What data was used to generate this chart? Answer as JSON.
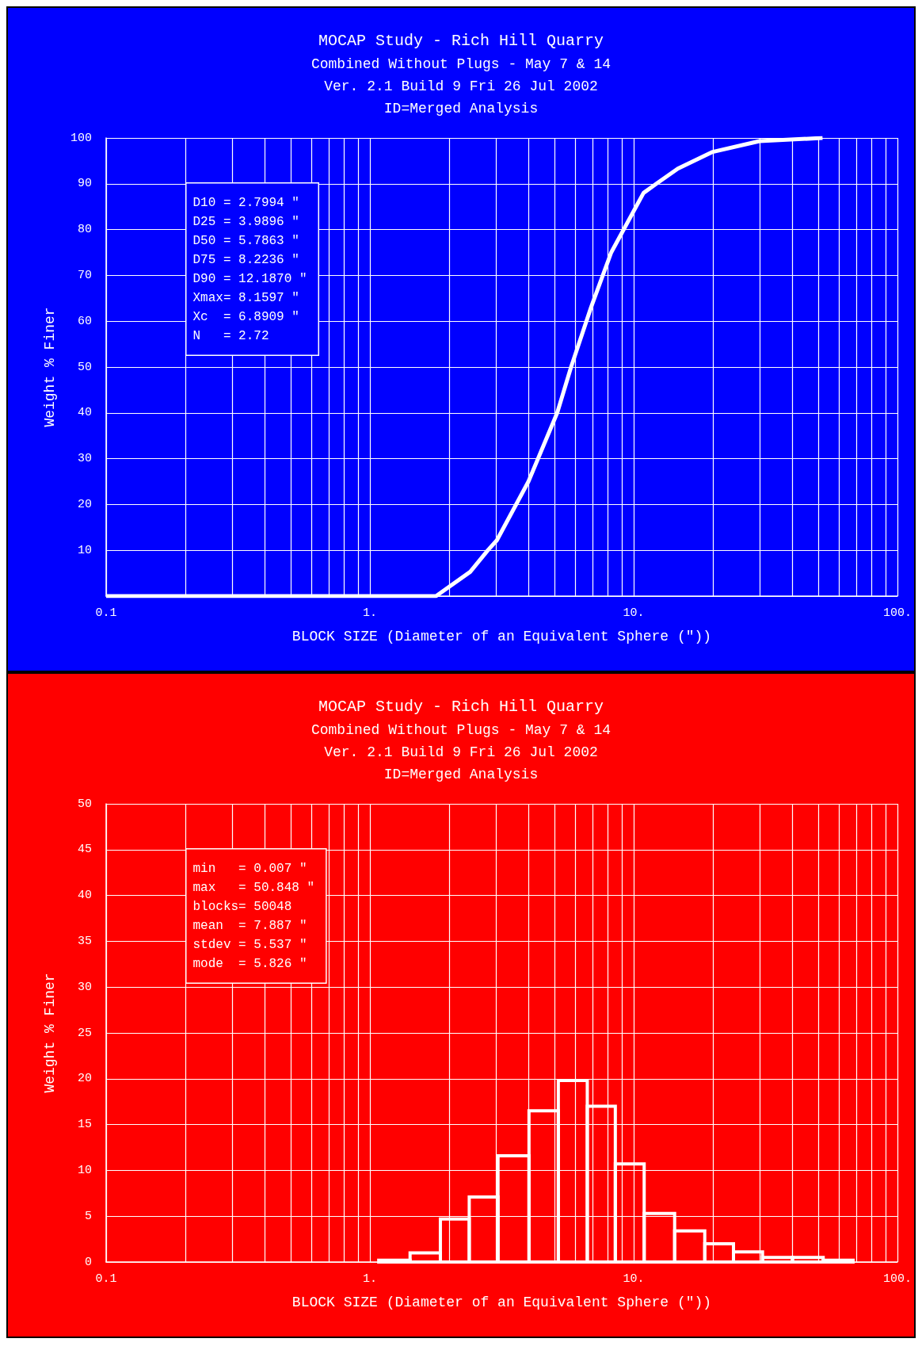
{
  "chart_data": [
    {
      "type": "line",
      "title": "MOCAP Study - Rich Hill Quarry",
      "subtitle": "Combined Without Plugs - May 7 & 14\nVer. 2.1 Build 9 Fri 26 Jul 2002\nID=Merged Analysis",
      "xlabel": "BLOCK SIZE (Diameter of an Equivalent Sphere (\"))",
      "ylabel": "Weight % Finer",
      "x": [
        0.1,
        1.44,
        1.78,
        2.4,
        2.8,
        3.03,
        3.99,
        5.13,
        5.79,
        6.89,
        8.22,
        10.9,
        12.19,
        14.7,
        19.8,
        30,
        52
      ],
      "series": [
        {
          "color": "#ffffff",
          "values": [
            0,
            0,
            0,
            5.3,
            10,
            12.2,
            25,
            40,
            50,
            63,
            75,
            88,
            90,
            93.3,
            96.9,
            99.3,
            100
          ]
        }
      ],
      "xlim": [
        0.1,
        100
      ],
      "xticks": [
        0.1,
        {
          "value": 0.2,
          "label": null
        },
        {
          "value": 0.3,
          "label": null
        },
        {
          "value": 0.4,
          "label": null
        },
        {
          "value": 0.5,
          "label": null
        },
        {
          "value": 0.6,
          "label": null
        },
        {
          "value": 0.7,
          "label": null
        },
        {
          "value": 0.8,
          "label": null
        },
        {
          "value": 0.9,
          "label": null
        },
        {
          "value": 1,
          "label": "1."
        },
        {
          "value": 2,
          "label": null
        },
        {
          "value": 3,
          "label": null
        },
        {
          "value": 4,
          "label": null
        },
        {
          "value": 5,
          "label": null
        },
        {
          "value": 6,
          "label": null
        },
        {
          "value": 7,
          "label": null
        },
        {
          "value": 8,
          "label": null
        },
        {
          "value": 9,
          "label": null
        },
        {
          "value": 10,
          "label": "10."
        },
        {
          "value": 20,
          "label": null
        },
        {
          "value": 30,
          "label": null
        },
        {
          "value": 40,
          "label": null
        },
        {
          "value": 50,
          "label": null
        },
        {
          "value": 60,
          "label": null
        },
        {
          "value": 70,
          "label": null
        },
        {
          "value": 80,
          "label": null
        },
        {
          "value": 90,
          "label": null
        },
        {
          "value": 100,
          "label": "100."
        }
      ],
      "ylim": [
        0,
        100
      ],
      "yticks": [
        {
          "value": 0,
          "label": null
        },
        10,
        20,
        30,
        40,
        50,
        60,
        70,
        80,
        90,
        100
      ],
      "log": "x",
      "grid": true,
      "marker": "none",
      "line_style": "solid",
      "annotations": [
        "D10 = 2.7994 \"",
        "D25 = 3.9896 \"",
        "D50 = 5.7863 \"",
        "D75 = 8.2236 \"",
        "D90 = 12.1870 \"",
        "Xmax= 8.1597 \"",
        "Xc  = 6.8909 \"",
        "N   = 2.72"
      ]
    },
    {
      "type": "histogram",
      "title": "MOCAP Study - Rich Hill Quarry",
      "subtitle": "Combined Without Plugs - May 7 & 14\nVer. 2.1 Build 9 Fri 26 Jul 2002\nID=Merged Analysis",
      "xlabel": "BLOCK SIZE (Diameter of an Equivalent Sphere (\"))",
      "ylabel": "Weight % Finer",
      "bins": [
        1.08,
        1.42,
        1.85,
        2.38,
        3.06,
        4.01,
        5.18,
        6.67,
        8.52,
        10.96,
        14.3,
        18.6,
        23.9,
        30.8,
        40,
        52.3,
        67.9
      ],
      "series": [
        {
          "color": "#ffffff",
          "values": [
            0.2,
            1.0,
            4.7,
            7.1,
            11.6,
            16.5,
            19.8,
            17.0,
            10.7,
            5.3,
            3.4,
            2.0,
            1.1,
            0.5,
            0.5,
            0.2
          ]
        }
      ],
      "xlim": [
        0.1,
        100
      ],
      "xticks": [
        0.1,
        {
          "value": 0.2,
          "label": null
        },
        {
          "value": 0.3,
          "label": null
        },
        {
          "value": 0.4,
          "label": null
        },
        {
          "value": 0.5,
          "label": null
        },
        {
          "value": 0.6,
          "label": null
        },
        {
          "value": 0.7,
          "label": null
        },
        {
          "value": 0.8,
          "label": null
        },
        {
          "value": 0.9,
          "label": null
        },
        {
          "value": 1,
          "label": "1."
        },
        {
          "value": 2,
          "label": null
        },
        {
          "value": 3,
          "label": null
        },
        {
          "value": 4,
          "label": null
        },
        {
          "value": 5,
          "label": null
        },
        {
          "value": 6,
          "label": null
        },
        {
          "value": 7,
          "label": null
        },
        {
          "value": 8,
          "label": null
        },
        {
          "value": 9,
          "label": null
        },
        {
          "value": 10,
          "label": "10."
        },
        {
          "value": 20,
          "label": null
        },
        {
          "value": 30,
          "label": null
        },
        {
          "value": 40,
          "label": null
        },
        {
          "value": 50,
          "label": null
        },
        {
          "value": 60,
          "label": null
        },
        {
          "value": 70,
          "label": null
        },
        {
          "value": 80,
          "label": null
        },
        {
          "value": 90,
          "label": null
        },
        {
          "value": 100,
          "label": "100."
        }
      ],
      "ylim": [
        0,
        50
      ],
      "yticks": [
        0,
        5,
        10,
        15,
        20,
        25,
        30,
        35,
        40,
        45,
        50
      ],
      "log": "x",
      "grid": true,
      "annotations": [
        "min   = 0.007 \"",
        "max   = 50.848 \"",
        "blocks= 50048",
        "mean  = 7.887 \"",
        "stdev = 5.537 \"",
        "mode  = 5.826 \""
      ]
    }
  ]
}
